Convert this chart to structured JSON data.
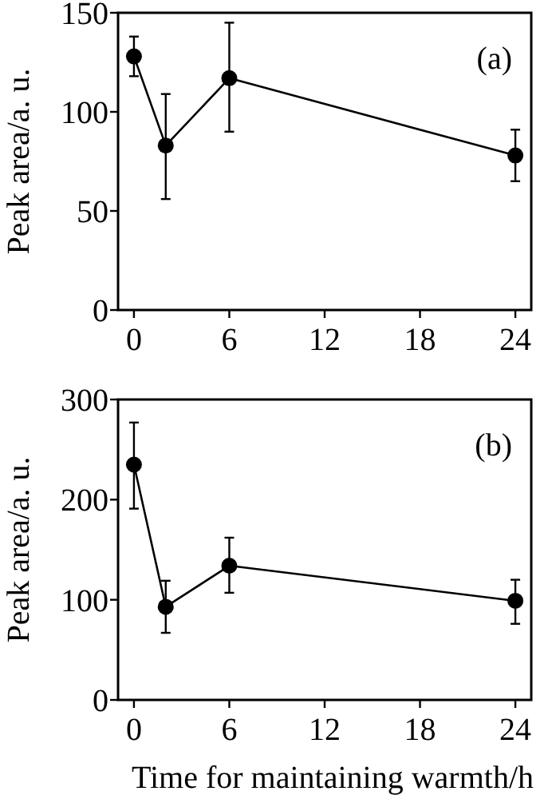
{
  "chart_data": [
    {
      "type": "line",
      "ylabel": "Peak area/a. u.",
      "annotations": [
        "(a)"
      ],
      "x": [
        0,
        2,
        6,
        24
      ],
      "xlim": [
        -1,
        25
      ],
      "xticks": [
        0,
        6,
        12,
        18,
        24
      ],
      "ylim": [
        0,
        150
      ],
      "yticks": [
        0,
        50,
        100,
        150
      ],
      "marker": "circle",
      "line_style": "solid",
      "series": [
        {
          "color": "#000000",
          "values": [
            128,
            83,
            117,
            78
          ],
          "errors": [
            10,
            [
              56,
              109
            ],
            [
              90,
              145
            ],
            13
          ]
        }
      ]
    },
    {
      "type": "line",
      "ylabel": "Peak area/a. u.",
      "xlabel": "Time for maintaining warmth/h",
      "annotations": [
        "(b)"
      ],
      "x": [
        0,
        2,
        6,
        24
      ],
      "xlim": [
        -1,
        25
      ],
      "xticks": [
        0,
        6,
        12,
        18,
        24
      ],
      "ylim": [
        0,
        300
      ],
      "yticks": [
        0,
        100,
        200,
        300
      ],
      "marker": "circle",
      "line_style": "solid",
      "series": [
        {
          "color": "#000000",
          "values": [
            235,
            93,
            134,
            99
          ],
          "errors": [
            [
              191,
              277
            ],
            [
              67,
              119
            ],
            [
              107,
              162
            ],
            [
              76,
              120
            ]
          ]
        }
      ]
    }
  ]
}
